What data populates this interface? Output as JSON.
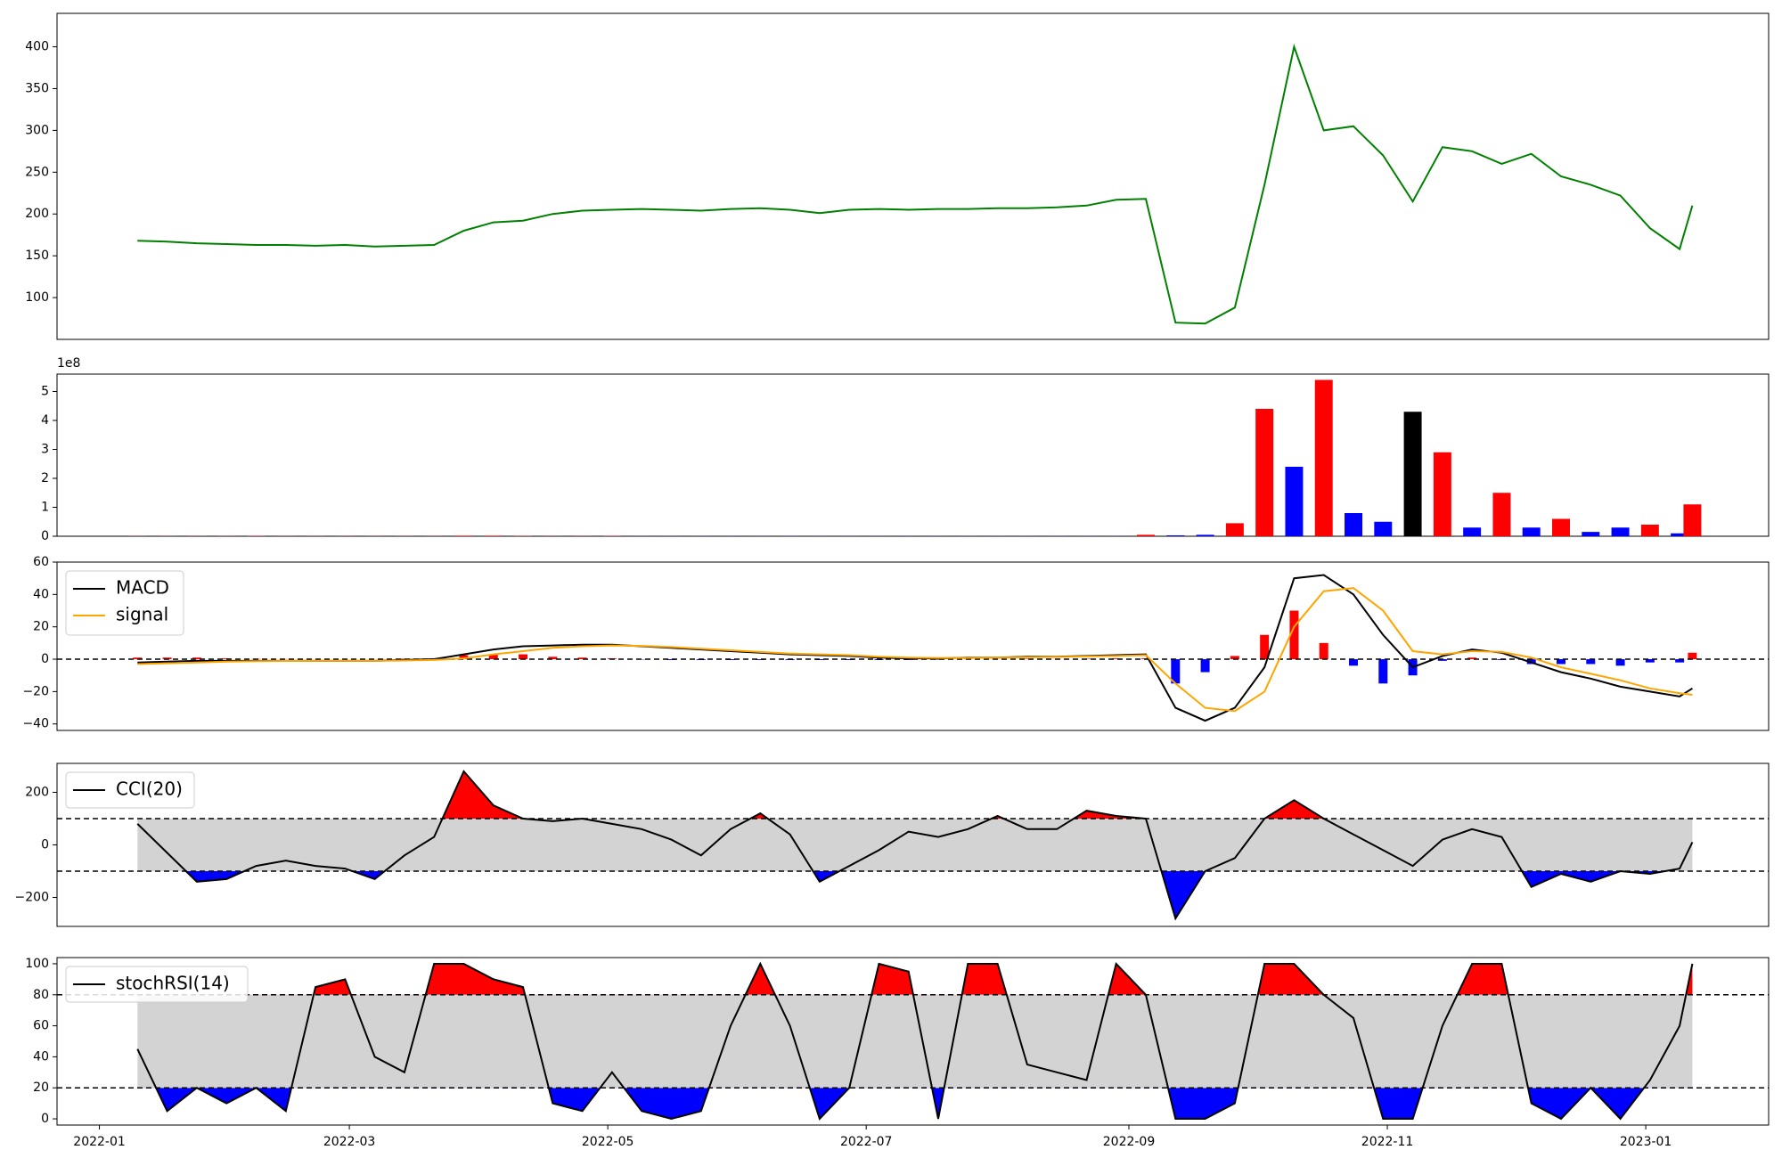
{
  "chart_data": [
    {
      "type": "line",
      "color": "green",
      "x": [
        "2022-01-10",
        "2022-01-17",
        "2022-01-24",
        "2022-01-31",
        "2022-02-07",
        "2022-02-14",
        "2022-02-21",
        "2022-02-28",
        "2022-03-07",
        "2022-03-14",
        "2022-03-21",
        "2022-03-28",
        "2022-04-04",
        "2022-04-11",
        "2022-04-18",
        "2022-04-25",
        "2022-05-02",
        "2022-05-09",
        "2022-05-16",
        "2022-05-23",
        "2022-05-30",
        "2022-06-06",
        "2022-06-13",
        "2022-06-20",
        "2022-06-27",
        "2022-07-04",
        "2022-07-11",
        "2022-07-18",
        "2022-07-25",
        "2022-08-01",
        "2022-08-08",
        "2022-08-15",
        "2022-08-22",
        "2022-08-29",
        "2022-09-05",
        "2022-09-12",
        "2022-09-19",
        "2022-09-26",
        "2022-10-03",
        "2022-10-10",
        "2022-10-17",
        "2022-10-24",
        "2022-10-31",
        "2022-11-07",
        "2022-11-14",
        "2022-11-21",
        "2022-11-28",
        "2022-12-05",
        "2022-12-12",
        "2022-12-19",
        "2022-12-26",
        "2023-01-02",
        "2023-01-09",
        "2023-01-12"
      ],
      "values": [
        168,
        167,
        165,
        164,
        163,
        163,
        162,
        163,
        161,
        162,
        163,
        180,
        190,
        192,
        200,
        204,
        205,
        206,
        205,
        204,
        206,
        207,
        205,
        201,
        205,
        206,
        205,
        206,
        206,
        207,
        207,
        208,
        210,
        217,
        218,
        70,
        69,
        88,
        235,
        400,
        300,
        305,
        270,
        215,
        280,
        275,
        260,
        272,
        245,
        235,
        222,
        183,
        158,
        210
      ],
      "xlim": [
        "2021-12-22",
        "2023-01-30"
      ],
      "ylim": [
        50,
        440
      ],
      "yticks": [
        100,
        150,
        200,
        250,
        300,
        350,
        400
      ]
    },
    {
      "type": "bar",
      "offset_label": "1e8",
      "x": [
        "2022-01-10",
        "2022-01-17",
        "2022-01-24",
        "2022-01-31",
        "2022-02-07",
        "2022-02-14",
        "2022-02-21",
        "2022-02-28",
        "2022-03-07",
        "2022-03-14",
        "2022-03-21",
        "2022-03-28",
        "2022-04-04",
        "2022-04-11",
        "2022-04-18",
        "2022-04-25",
        "2022-05-02",
        "2022-05-09",
        "2022-05-16",
        "2022-05-23",
        "2022-05-30",
        "2022-06-06",
        "2022-06-13",
        "2022-06-20",
        "2022-06-27",
        "2022-07-04",
        "2022-07-11",
        "2022-07-18",
        "2022-07-25",
        "2022-08-01",
        "2022-08-08",
        "2022-08-15",
        "2022-08-22",
        "2022-08-29",
        "2022-09-05",
        "2022-09-12",
        "2022-09-19",
        "2022-09-26",
        "2022-10-03",
        "2022-10-10",
        "2022-10-17",
        "2022-10-24",
        "2022-10-31",
        "2022-11-07",
        "2022-11-14",
        "2022-11-21",
        "2022-11-28",
        "2022-12-05",
        "2022-12-12",
        "2022-12-19",
        "2022-12-26",
        "2023-01-02",
        "2023-01-09",
        "2023-01-12"
      ],
      "values": [
        0.005,
        0.005,
        0.005,
        0.005,
        0.01,
        0.005,
        0.005,
        0.005,
        0.005,
        0.005,
        0.005,
        0.02,
        0.02,
        0.01,
        0.005,
        0.005,
        0.01,
        0.005,
        0.005,
        0.005,
        0.005,
        0.005,
        0.01,
        0.005,
        0.005,
        0.005,
        0.005,
        0.005,
        0.005,
        0.005,
        0.005,
        0.005,
        0.005,
        0.005,
        0.05,
        0.03,
        0.05,
        0.45,
        4.4,
        2.4,
        5.4,
        0.8,
        0.5,
        4.3,
        2.9,
        0.3,
        1.5,
        0.3,
        0.6,
        0.15,
        0.3,
        0.4,
        0.1,
        1.1
      ],
      "colors": [
        "red",
        "red",
        "red",
        "red",
        "red",
        "red",
        "red",
        "red",
        "red",
        "red",
        "red",
        "red",
        "red",
        "red",
        "red",
        "red",
        "red",
        "blue",
        "blue",
        "blue",
        "blue",
        "blue",
        "blue",
        "blue",
        "blue",
        "blue",
        "blue",
        "blue",
        "blue",
        "blue",
        "blue",
        "blue",
        "blue",
        "blue",
        "red",
        "blue",
        "blue",
        "red",
        "red",
        "blue",
        "red",
        "blue",
        "blue",
        "black",
        "red",
        "blue",
        "red",
        "blue",
        "red",
        "blue",
        "blue",
        "red",
        "blue",
        "red"
      ],
      "xlim": [
        "2021-12-22",
        "2023-01-30"
      ],
      "ylim": [
        0,
        5.6
      ],
      "yticks": [
        0,
        1,
        2,
        3,
        4,
        5
      ]
    },
    {
      "type": "macd",
      "legend": "upper left",
      "reference_line": 0,
      "up_color": "red",
      "down_color": "blue",
      "x": [
        "2022-01-10",
        "2022-01-17",
        "2022-01-24",
        "2022-01-31",
        "2022-02-07",
        "2022-02-14",
        "2022-02-21",
        "2022-02-28",
        "2022-03-07",
        "2022-03-14",
        "2022-03-21",
        "2022-03-28",
        "2022-04-04",
        "2022-04-11",
        "2022-04-18",
        "2022-04-25",
        "2022-05-02",
        "2022-05-09",
        "2022-05-16",
        "2022-05-23",
        "2022-05-30",
        "2022-06-06",
        "2022-06-13",
        "2022-06-20",
        "2022-06-27",
        "2022-07-04",
        "2022-07-11",
        "2022-07-18",
        "2022-07-25",
        "2022-08-01",
        "2022-08-08",
        "2022-08-15",
        "2022-08-22",
        "2022-08-29",
        "2022-09-05",
        "2022-09-12",
        "2022-09-19",
        "2022-09-26",
        "2022-10-03",
        "2022-10-10",
        "2022-10-17",
        "2022-10-24",
        "2022-10-31",
        "2022-11-07",
        "2022-11-14",
        "2022-11-21",
        "2022-11-28",
        "2022-12-05",
        "2022-12-12",
        "2022-12-19",
        "2022-12-26",
        "2023-01-02",
        "2023-01-09",
        "2023-01-12"
      ],
      "series": [
        {
          "name": "MACD",
          "color": "black",
          "values": [
            -2,
            -1.5,
            -1,
            -1,
            -1,
            -1,
            -1,
            -1,
            -1,
            -0.5,
            0,
            3,
            6,
            8,
            8.5,
            9,
            9,
            8,
            7,
            6,
            5,
            4,
            3,
            2.5,
            2,
            1,
            0.5,
            0.5,
            1,
            1,
            1.5,
            1.5,
            2,
            2.5,
            3,
            -30,
            -38,
            -30,
            -5,
            50,
            52,
            40,
            15,
            -5,
            2,
            6,
            4,
            -2,
            -8,
            -12,
            -17,
            -20,
            -23,
            -18
          ]
        },
        {
          "name": "signal",
          "color": "orange",
          "values": [
            -3,
            -2.5,
            -2,
            -1.5,
            -1.2,
            -1.1,
            -1,
            -1,
            -1,
            -0.8,
            -0.5,
            0.5,
            3,
            5,
            7,
            8,
            8.5,
            8.2,
            7.5,
            6.5,
            5.5,
            4.5,
            3.5,
            3,
            2.5,
            1.5,
            1,
            0.8,
            0.8,
            1,
            1.2,
            1.4,
            1.7,
            2,
            2.5,
            -15,
            -30,
            -32,
            -20,
            20,
            42,
            44,
            30,
            5,
            3,
            5,
            4.5,
            1,
            -5,
            -9,
            -13,
            -18,
            -21,
            -22
          ]
        }
      ],
      "histogram": [
        1,
        1,
        1,
        0.5,
        0.2,
        0.1,
        0,
        0,
        0,
        0.3,
        0.5,
        2.5,
        3,
        3,
        1.5,
        1,
        0.5,
        -0.2,
        -0.5,
        -0.5,
        -0.5,
        -0.5,
        -0.5,
        -0.5,
        -0.5,
        -0.5,
        -0.5,
        -0.3,
        0.2,
        0,
        0.3,
        0.1,
        0.3,
        0.5,
        0.5,
        -15,
        -8,
        2,
        15,
        30,
        10,
        -4,
        -15,
        -10,
        -1,
        1,
        -0.5,
        -3,
        -3,
        -3,
        -4,
        -2,
        -2,
        4
      ],
      "xlim": [
        "2021-12-22",
        "2023-01-30"
      ],
      "ylim": [
        -44,
        60
      ],
      "yticks": [
        {
          "value": -40,
          "label": "−40"
        },
        {
          "value": -20,
          "label": "−20"
        },
        0,
        20,
        40,
        60
      ]
    },
    {
      "type": "oscillator",
      "legend": "upper left",
      "thresholds": [
        -100,
        100
      ],
      "band_color": "lightgray",
      "upper_color": "red",
      "lower_color": "blue",
      "x": [
        "2022-01-10",
        "2022-01-17",
        "2022-01-24",
        "2022-01-31",
        "2022-02-07",
        "2022-02-14",
        "2022-02-21",
        "2022-02-28",
        "2022-03-07",
        "2022-03-14",
        "2022-03-21",
        "2022-03-28",
        "2022-04-04",
        "2022-04-11",
        "2022-04-18",
        "2022-04-25",
        "2022-05-02",
        "2022-05-09",
        "2022-05-16",
        "2022-05-23",
        "2022-05-30",
        "2022-06-06",
        "2022-06-13",
        "2022-06-20",
        "2022-06-27",
        "2022-07-04",
        "2022-07-11",
        "2022-07-18",
        "2022-07-25",
        "2022-08-01",
        "2022-08-08",
        "2022-08-15",
        "2022-08-22",
        "2022-08-29",
        "2022-09-05",
        "2022-09-12",
        "2022-09-19",
        "2022-09-26",
        "2022-10-03",
        "2022-10-10",
        "2022-10-17",
        "2022-10-24",
        "2022-10-31",
        "2022-11-07",
        "2022-11-14",
        "2022-11-21",
        "2022-11-28",
        "2022-12-05",
        "2022-12-12",
        "2022-12-19",
        "2022-12-26",
        "2023-01-02",
        "2023-01-09",
        "2023-01-12"
      ],
      "series": [
        {
          "name": "CCI(20)",
          "color": "black",
          "values": [
            80,
            -30,
            -140,
            -130,
            -80,
            -60,
            -80,
            -90,
            -130,
            -40,
            30,
            280,
            150,
            100,
            90,
            100,
            80,
            60,
            20,
            -40,
            60,
            120,
            40,
            -140,
            -80,
            -20,
            50,
            30,
            60,
            110,
            60,
            60,
            130,
            110,
            100,
            -280,
            -100,
            -50,
            100,
            170,
            100,
            40,
            -20,
            -80,
            20,
            60,
            30,
            -160,
            -110,
            -140,
            -100,
            -110,
            -90,
            10
          ]
        }
      ],
      "xlim": [
        "2021-12-22",
        "2023-01-30"
      ],
      "ylim": [
        -310,
        310
      ],
      "yticks": [
        {
          "value": -200,
          "label": "−200"
        },
        0,
        200
      ]
    },
    {
      "type": "oscillator",
      "legend": "upper left",
      "thresholds": [
        20,
        80
      ],
      "band_color": "lightgray",
      "upper_color": "red",
      "lower_color": "blue",
      "x": [
        "2022-01-10",
        "2022-01-17",
        "2022-01-24",
        "2022-01-31",
        "2022-02-07",
        "2022-02-14",
        "2022-02-21",
        "2022-02-28",
        "2022-03-07",
        "2022-03-14",
        "2022-03-21",
        "2022-03-28",
        "2022-04-04",
        "2022-04-11",
        "2022-04-18",
        "2022-04-25",
        "2022-05-02",
        "2022-05-09",
        "2022-05-16",
        "2022-05-23",
        "2022-05-30",
        "2022-06-06",
        "2022-06-13",
        "2022-06-20",
        "2022-06-27",
        "2022-07-04",
        "2022-07-11",
        "2022-07-18",
        "2022-07-25",
        "2022-08-01",
        "2022-08-08",
        "2022-08-15",
        "2022-08-22",
        "2022-08-29",
        "2022-09-05",
        "2022-09-12",
        "2022-09-19",
        "2022-09-26",
        "2022-10-03",
        "2022-10-10",
        "2022-10-17",
        "2022-10-24",
        "2022-10-31",
        "2022-11-07",
        "2022-11-14",
        "2022-11-21",
        "2022-11-28",
        "2022-12-05",
        "2022-12-12",
        "2022-12-19",
        "2022-12-26",
        "2023-01-02",
        "2023-01-09",
        "2023-01-12"
      ],
      "series": [
        {
          "name": "stochRSI(14)",
          "color": "black",
          "values": [
            45,
            5,
            20,
            10,
            20,
            5,
            85,
            90,
            40,
            30,
            100,
            100,
            90,
            85,
            10,
            5,
            30,
            5,
            0,
            5,
            60,
            100,
            60,
            0,
            20,
            100,
            95,
            0,
            100,
            100,
            35,
            30,
            25,
            100,
            80,
            0,
            0,
            10,
            100,
            100,
            80,
            65,
            0,
            0,
            60,
            100,
            100,
            10,
            0,
            20,
            0,
            25,
            60,
            100
          ]
        }
      ],
      "xlim": [
        "2021-12-22",
        "2023-01-30"
      ],
      "ylim": [
        -4,
        104
      ],
      "yticks": [
        0,
        20,
        40,
        60,
        80,
        100
      ],
      "xticks": [
        {
          "value": "2022-01-01",
          "label": "2022-01"
        },
        {
          "value": "2022-03-01",
          "label": "2022-03"
        },
        {
          "value": "2022-05-01",
          "label": "2022-05"
        },
        {
          "value": "2022-07-01",
          "label": "2022-07"
        },
        {
          "value": "2022-09-01",
          "label": "2022-09"
        },
        {
          "value": "2022-11-01",
          "label": "2022-11"
        },
        {
          "value": "2023-01-01",
          "label": "2023-01"
        }
      ]
    }
  ]
}
